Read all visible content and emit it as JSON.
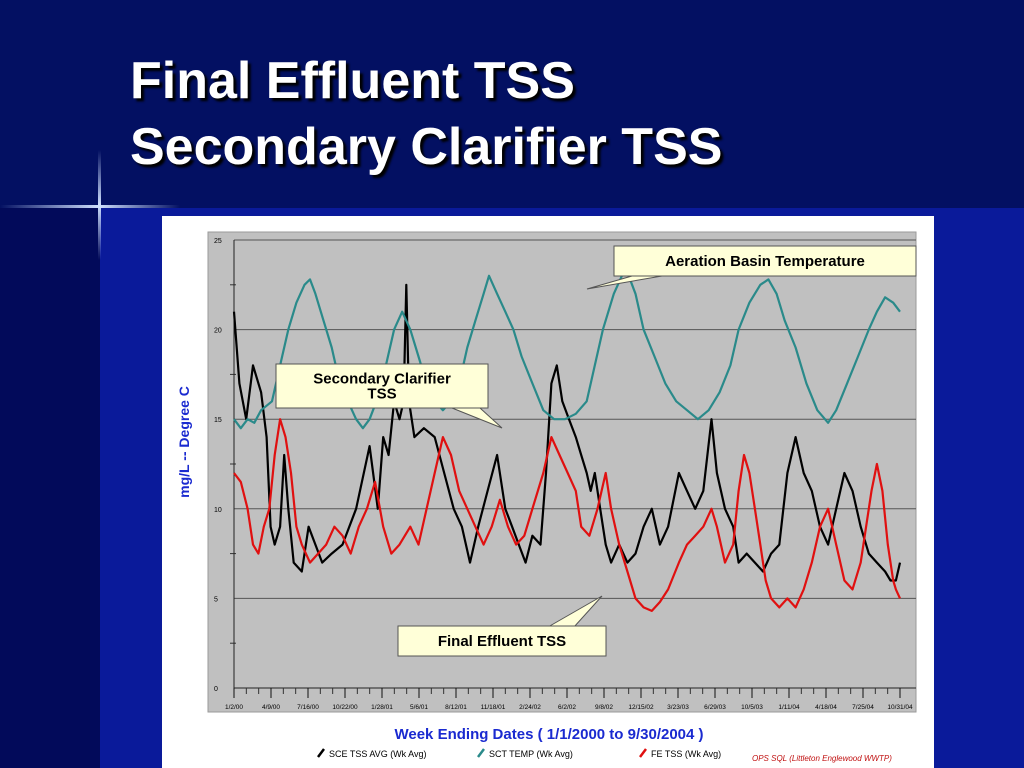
{
  "slide": {
    "title_line1": "Final Effluent TSS",
    "title_line2": "Secondary Clarifier TSS",
    "colors": {
      "background": "#02107e",
      "title": "#ffffff"
    }
  },
  "chart_data": {
    "type": "line",
    "ylabel": "mg/L -- Degree C",
    "xlabel": "Week Ending Dates  ( 1/1/2000  to  9/30/2004 )",
    "ylim": [
      0,
      25
    ],
    "y_ticks": [
      0,
      5,
      10,
      15,
      20,
      25
    ],
    "x_range": [
      "2000-01-02",
      "2004-10-31"
    ],
    "x_ticks": [
      "1/2/00",
      "4/9/00",
      "7/16/00",
      "10/22/00",
      "1/28/01",
      "5/6/01",
      "8/12/01",
      "11/18/01",
      "2/24/02",
      "6/2/02",
      "9/8/02",
      "12/15/02",
      "3/23/03",
      "6/29/03",
      "10/5/03",
      "1/11/04",
      "4/18/04",
      "7/25/04",
      "10/31/04"
    ],
    "grid": true,
    "plot_background": "#c0c0c0",
    "legend_position": "bottom",
    "footer_note": "OPS SQL (Littleton Englewood WWTP)",
    "series": [
      {
        "name": "SCE TSS AVG (Wk  Avg)",
        "color": "#000000",
        "points": [
          [
            0,
            21
          ],
          [
            0.04,
            17
          ],
          [
            0.09,
            15
          ],
          [
            0.14,
            18
          ],
          [
            0.2,
            16.5
          ],
          [
            0.24,
            14
          ],
          [
            0.27,
            9
          ],
          [
            0.3,
            8
          ],
          [
            0.34,
            9
          ],
          [
            0.37,
            13
          ],
          [
            0.4,
            10
          ],
          [
            0.44,
            7
          ],
          [
            0.5,
            6.5
          ],
          [
            0.55,
            9
          ],
          [
            0.6,
            8
          ],
          [
            0.65,
            7
          ],
          [
            0.72,
            7.5
          ],
          [
            0.8,
            8
          ],
          [
            0.9,
            10
          ],
          [
            1.0,
            13.5
          ],
          [
            1.06,
            10
          ],
          [
            1.1,
            14
          ],
          [
            1.14,
            13
          ],
          [
            1.18,
            16
          ],
          [
            1.22,
            15
          ],
          [
            1.25,
            16
          ],
          [
            1.27,
            22.5
          ],
          [
            1.29,
            16
          ],
          [
            1.33,
            14
          ],
          [
            1.4,
            14.5
          ],
          [
            1.48,
            14
          ],
          [
            1.55,
            12
          ],
          [
            1.62,
            10
          ],
          [
            1.68,
            9
          ],
          [
            1.74,
            7
          ],
          [
            1.8,
            9
          ],
          [
            1.87,
            11
          ],
          [
            1.94,
            13
          ],
          [
            2.0,
            10
          ],
          [
            2.05,
            9
          ],
          [
            2.1,
            8
          ],
          [
            2.15,
            7
          ],
          [
            2.2,
            8.5
          ],
          [
            2.26,
            8
          ],
          [
            2.3,
            12
          ],
          [
            2.34,
            17
          ],
          [
            2.38,
            18
          ],
          [
            2.42,
            16
          ],
          [
            2.47,
            15
          ],
          [
            2.52,
            14
          ],
          [
            2.56,
            13
          ],
          [
            2.6,
            12
          ],
          [
            2.63,
            11
          ],
          [
            2.66,
            12
          ],
          [
            2.7,
            10
          ],
          [
            2.74,
            8
          ],
          [
            2.78,
            7
          ],
          [
            2.84,
            8
          ],
          [
            2.9,
            7
          ],
          [
            2.96,
            7.5
          ],
          [
            3.02,
            9
          ],
          [
            3.08,
            10
          ],
          [
            3.14,
            8
          ],
          [
            3.2,
            9
          ],
          [
            3.28,
            12
          ],
          [
            3.34,
            11
          ],
          [
            3.4,
            10
          ],
          [
            3.46,
            11
          ],
          [
            3.52,
            15
          ],
          [
            3.56,
            12
          ],
          [
            3.62,
            10
          ],
          [
            3.68,
            9
          ],
          [
            3.72,
            7
          ],
          [
            3.78,
            7.5
          ],
          [
            3.84,
            7
          ],
          [
            3.9,
            6.5
          ],
          [
            3.96,
            7.5
          ],
          [
            4.02,
            8
          ],
          [
            4.08,
            12
          ],
          [
            4.14,
            14
          ],
          [
            4.2,
            12
          ],
          [
            4.26,
            11
          ],
          [
            4.32,
            9
          ],
          [
            4.38,
            8
          ],
          [
            4.44,
            10
          ],
          [
            4.5,
            12
          ],
          [
            4.56,
            11
          ],
          [
            4.62,
            9
          ],
          [
            4.68,
            7.5
          ],
          [
            4.74,
            7
          ],
          [
            4.8,
            6.5
          ],
          [
            4.84,
            6
          ],
          [
            4.88,
            6
          ],
          [
            4.91,
            7
          ]
        ]
      },
      {
        "name": "SCT TEMP (Wk  Avg)",
        "color": "#2a8a8a",
        "points": [
          [
            0,
            15
          ],
          [
            0.05,
            14.5
          ],
          [
            0.1,
            15
          ],
          [
            0.15,
            14.8
          ],
          [
            0.2,
            15.5
          ],
          [
            0.28,
            16
          ],
          [
            0.34,
            18
          ],
          [
            0.4,
            20
          ],
          [
            0.46,
            21.5
          ],
          [
            0.52,
            22.5
          ],
          [
            0.56,
            22.8
          ],
          [
            0.6,
            22
          ],
          [
            0.66,
            20.5
          ],
          [
            0.72,
            19
          ],
          [
            0.78,
            17
          ],
          [
            0.84,
            16
          ],
          [
            0.9,
            15
          ],
          [
            0.95,
            14.5
          ],
          [
            1.0,
            15
          ],
          [
            1.05,
            16
          ],
          [
            1.12,
            18
          ],
          [
            1.18,
            20
          ],
          [
            1.24,
            21
          ],
          [
            1.3,
            20
          ],
          [
            1.36,
            18.5
          ],
          [
            1.42,
            17
          ],
          [
            1.48,
            16
          ],
          [
            1.54,
            15.5
          ],
          [
            1.6,
            16
          ],
          [
            1.66,
            17
          ],
          [
            1.72,
            19
          ],
          [
            1.78,
            20.5
          ],
          [
            1.84,
            22
          ],
          [
            1.88,
            23
          ],
          [
            1.94,
            22
          ],
          [
            2.0,
            21
          ],
          [
            2.06,
            20
          ],
          [
            2.12,
            18.5
          ],
          [
            2.2,
            17
          ],
          [
            2.28,
            15.5
          ],
          [
            2.36,
            15
          ],
          [
            2.44,
            15
          ],
          [
            2.52,
            15.3
          ],
          [
            2.6,
            16
          ],
          [
            2.66,
            18
          ],
          [
            2.72,
            20
          ],
          [
            2.8,
            22
          ],
          [
            2.86,
            23
          ],
          [
            2.9,
            23.2
          ],
          [
            2.96,
            22
          ],
          [
            3.02,
            20
          ],
          [
            3.1,
            18.5
          ],
          [
            3.18,
            17
          ],
          [
            3.26,
            16
          ],
          [
            3.34,
            15.5
          ],
          [
            3.42,
            15
          ],
          [
            3.5,
            15.5
          ],
          [
            3.58,
            16.5
          ],
          [
            3.66,
            18
          ],
          [
            3.72,
            20
          ],
          [
            3.8,
            21.5
          ],
          [
            3.88,
            22.5
          ],
          [
            3.94,
            22.8
          ],
          [
            4.0,
            22
          ],
          [
            4.06,
            20.5
          ],
          [
            4.14,
            19
          ],
          [
            4.22,
            17
          ],
          [
            4.3,
            15.5
          ],
          [
            4.38,
            14.8
          ],
          [
            4.44,
            15.5
          ],
          [
            4.52,
            17
          ],
          [
            4.6,
            18.5
          ],
          [
            4.68,
            20
          ],
          [
            4.74,
            21
          ],
          [
            4.8,
            21.8
          ],
          [
            4.86,
            21.5
          ],
          [
            4.91,
            21
          ]
        ]
      },
      {
        "name": "FE TSS (Wk  Avg)",
        "color": "#e01010",
        "points": [
          [
            0,
            12
          ],
          [
            0.05,
            11.5
          ],
          [
            0.1,
            10
          ],
          [
            0.14,
            8
          ],
          [
            0.18,
            7.5
          ],
          [
            0.22,
            9
          ],
          [
            0.26,
            10
          ],
          [
            0.3,
            13
          ],
          [
            0.34,
            15
          ],
          [
            0.38,
            14
          ],
          [
            0.42,
            12
          ],
          [
            0.46,
            9
          ],
          [
            0.5,
            8
          ],
          [
            0.56,
            7
          ],
          [
            0.62,
            7.5
          ],
          [
            0.68,
            8
          ],
          [
            0.74,
            9
          ],
          [
            0.8,
            8.5
          ],
          [
            0.86,
            7.5
          ],
          [
            0.92,
            9
          ],
          [
            0.98,
            10
          ],
          [
            1.04,
            11.5
          ],
          [
            1.1,
            9
          ],
          [
            1.16,
            7.5
          ],
          [
            1.22,
            8
          ],
          [
            1.3,
            9
          ],
          [
            1.36,
            8
          ],
          [
            1.42,
            10
          ],
          [
            1.48,
            12
          ],
          [
            1.54,
            14
          ],
          [
            1.6,
            13
          ],
          [
            1.66,
            11
          ],
          [
            1.72,
            10
          ],
          [
            1.78,
            9
          ],
          [
            1.84,
            8
          ],
          [
            1.9,
            9
          ],
          [
            1.96,
            10.5
          ],
          [
            2.02,
            9
          ],
          [
            2.08,
            8
          ],
          [
            2.14,
            8.5
          ],
          [
            2.2,
            10
          ],
          [
            2.28,
            12
          ],
          [
            2.34,
            14
          ],
          [
            2.4,
            13
          ],
          [
            2.46,
            12
          ],
          [
            2.52,
            11
          ],
          [
            2.56,
            9
          ],
          [
            2.62,
            8.5
          ],
          [
            2.68,
            10
          ],
          [
            2.74,
            12
          ],
          [
            2.78,
            10
          ],
          [
            2.84,
            8
          ],
          [
            2.9,
            6.5
          ],
          [
            2.96,
            5
          ],
          [
            3.02,
            4.5
          ],
          [
            3.08,
            4.3
          ],
          [
            3.14,
            4.8
          ],
          [
            3.2,
            5.5
          ],
          [
            3.28,
            7
          ],
          [
            3.34,
            8
          ],
          [
            3.4,
            8.5
          ],
          [
            3.46,
            9
          ],
          [
            3.52,
            10
          ],
          [
            3.56,
            9
          ],
          [
            3.62,
            7
          ],
          [
            3.68,
            8
          ],
          [
            3.72,
            11
          ],
          [
            3.76,
            13
          ],
          [
            3.8,
            12
          ],
          [
            3.84,
            10
          ],
          [
            3.88,
            8
          ],
          [
            3.92,
            6
          ],
          [
            3.96,
            5
          ],
          [
            4.02,
            4.5
          ],
          [
            4.08,
            5
          ],
          [
            4.14,
            4.5
          ],
          [
            4.2,
            5.5
          ],
          [
            4.26,
            7
          ],
          [
            4.32,
            9
          ],
          [
            4.38,
            10
          ],
          [
            4.44,
            8
          ],
          [
            4.5,
            6
          ],
          [
            4.56,
            5.5
          ],
          [
            4.62,
            7
          ],
          [
            4.66,
            9
          ],
          [
            4.7,
            11
          ],
          [
            4.74,
            12.5
          ],
          [
            4.78,
            11
          ],
          [
            4.82,
            8
          ],
          [
            4.86,
            6
          ],
          [
            4.88,
            5.5
          ],
          [
            4.91,
            5
          ]
        ]
      }
    ],
    "annotations": [
      {
        "text": "Aeration Basin Temperature"
      },
      {
        "text": "Secondary Clarifier\nTSS"
      },
      {
        "text": "Final Effluent TSS"
      }
    ]
  }
}
